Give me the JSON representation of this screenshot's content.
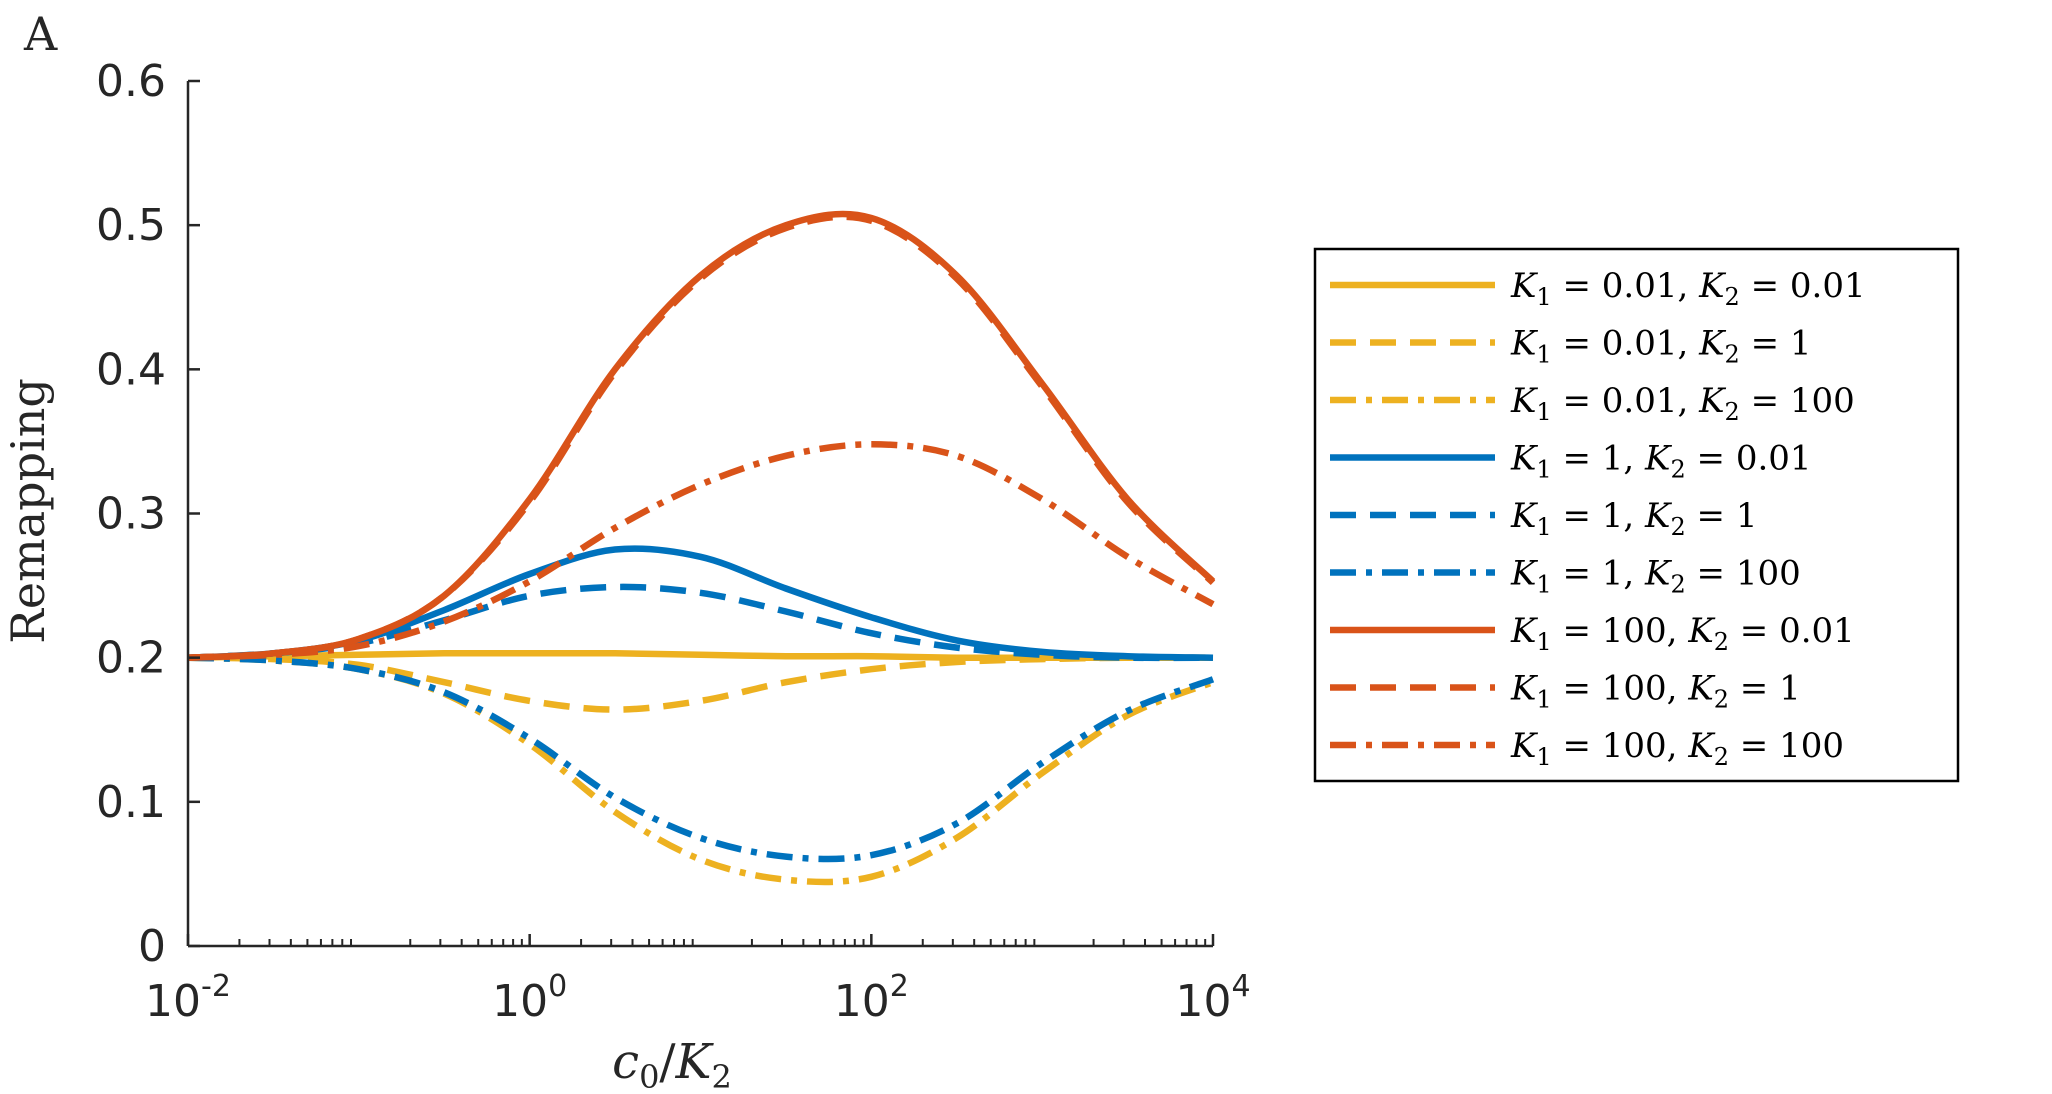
{
  "chart_data": {
    "type": "line",
    "panel_label": "A",
    "title": "",
    "xlabel": "c0/K2",
    "ylabel": "Remapping",
    "xscale": "log",
    "xlim": [
      0.01,
      10000
    ],
    "ylim": [
      0,
      0.6
    ],
    "x_ticks": [
      {
        "value": 0.01,
        "base": "10",
        "exp": "-2"
      },
      {
        "value": 1,
        "base": "10",
        "exp": "0"
      },
      {
        "value": 100,
        "base": "10",
        "exp": "2"
      },
      {
        "value": 10000,
        "base": "10",
        "exp": "4"
      }
    ],
    "y_ticks": [
      {
        "value": 0,
        "label": "0"
      },
      {
        "value": 0.1,
        "label": "0.1"
      },
      {
        "value": 0.2,
        "label": "0.2"
      },
      {
        "value": 0.3,
        "label": "0.3"
      },
      {
        "value": 0.4,
        "label": "0.4"
      },
      {
        "value": 0.5,
        "label": "0.5"
      },
      {
        "value": 0.6,
        "label": "0.6"
      }
    ],
    "legend_position": "outside-right",
    "x": [
      0.01,
      0.0316,
      0.1,
      0.316,
      1,
      3.16,
      10,
      31.6,
      100,
      316,
      1000,
      3160,
      10000
    ],
    "series": [
      {
        "name": "K1 = 0.01, K2 = 0.01",
        "label": {
          "k1": "0.01",
          "k2": "0.01"
        },
        "color": "#EDB120",
        "dash": "solid",
        "values": [
          0.2,
          0.201,
          0.202,
          0.203,
          0.203,
          0.203,
          0.202,
          0.201,
          0.201,
          0.2,
          0.2,
          0.2,
          0.2
        ]
      },
      {
        "name": "K1 = 0.01, K2 = 1",
        "label": {
          "k1": "0.01",
          "k2": "1"
        },
        "color": "#EDB120",
        "dash": "dash",
        "values": [
          0.2,
          0.199,
          0.195,
          0.183,
          0.17,
          0.164,
          0.17,
          0.183,
          0.192,
          0.197,
          0.199,
          0.2,
          0.2
        ]
      },
      {
        "name": "K1 = 0.01, K2 = 100",
        "label": {
          "k1": "0.01",
          "k2": "100"
        },
        "color": "#EDB120",
        "dash": "dashdot",
        "values": [
          0.2,
          0.198,
          0.192,
          0.175,
          0.14,
          0.093,
          0.06,
          0.046,
          0.048,
          0.075,
          0.12,
          0.16,
          0.183
        ]
      },
      {
        "name": "K1 = 1, K2 = 0.01",
        "label": {
          "k1": "1",
          "k2": "0.01"
        },
        "color": "#0072BD",
        "dash": "solid",
        "values": [
          0.2,
          0.203,
          0.212,
          0.233,
          0.258,
          0.275,
          0.27,
          0.248,
          0.228,
          0.212,
          0.204,
          0.201,
          0.2
        ]
      },
      {
        "name": "K1 = 1, K2 = 1",
        "label": {
          "k1": "1",
          "k2": "1"
        },
        "color": "#0072BD",
        "dash": "dash",
        "values": [
          0.2,
          0.203,
          0.21,
          0.226,
          0.243,
          0.249,
          0.245,
          0.232,
          0.217,
          0.207,
          0.202,
          0.2,
          0.2
        ]
      },
      {
        "name": "K1 = 1, K2 = 100",
        "label": {
          "k1": "1",
          "k2": "100"
        },
        "color": "#0072BD",
        "dash": "dashdot",
        "values": [
          0.2,
          0.198,
          0.192,
          0.176,
          0.144,
          0.103,
          0.075,
          0.062,
          0.063,
          0.085,
          0.127,
          0.163,
          0.185
        ]
      },
      {
        "name": "K1 = 100, K2 = 0.01",
        "label": {
          "k1": "100",
          "k2": "0.01"
        },
        "color": "#D95319",
        "dash": "solid",
        "values": [
          0.2,
          0.203,
          0.213,
          0.243,
          0.31,
          0.4,
          0.465,
          0.5,
          0.505,
          0.465,
          0.39,
          0.31,
          0.253
        ]
      },
      {
        "name": "K1 = 100, K2 = 1",
        "label": {
          "k1": "100",
          "k2": "1"
        },
        "color": "#D95319",
        "dash": "dash",
        "values": [
          0.2,
          0.203,
          0.213,
          0.243,
          0.308,
          0.398,
          0.463,
          0.498,
          0.503,
          0.463,
          0.388,
          0.308,
          0.252
        ]
      },
      {
        "name": "K1 = 100, K2 = 100",
        "label": {
          "k1": "100",
          "k2": "100"
        },
        "color": "#D95319",
        "dash": "dashdot",
        "values": [
          0.2,
          0.202,
          0.208,
          0.225,
          0.253,
          0.29,
          0.32,
          0.34,
          0.348,
          0.34,
          0.31,
          0.27,
          0.237
        ]
      }
    ]
  }
}
